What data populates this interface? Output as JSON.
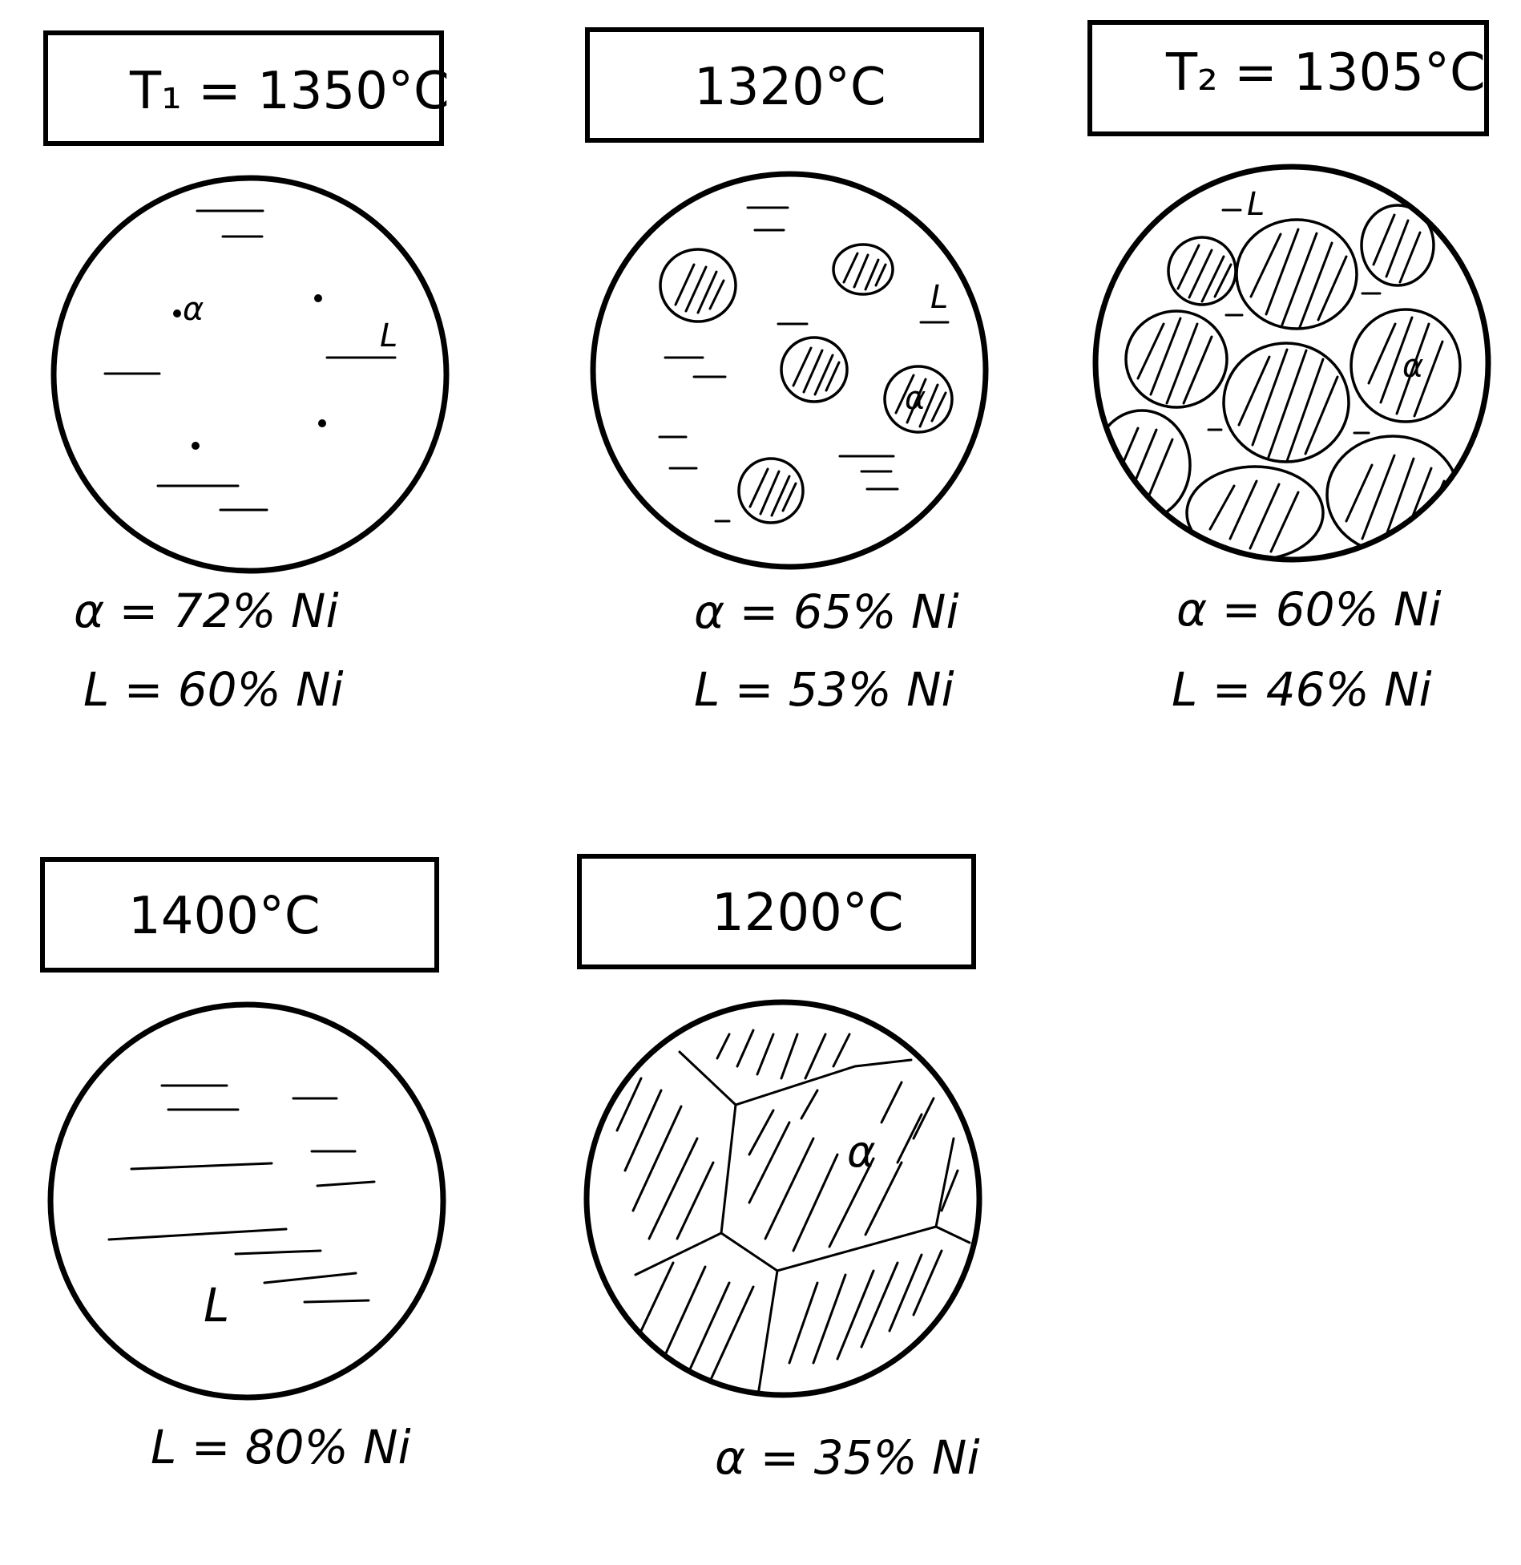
{
  "panels": [
    {
      "id": "t1",
      "title": "T₁ = 1350°C",
      "lines": [
        "α = 72% Ni",
        "L = 60% Ni"
      ],
      "labels": [
        "α",
        "L"
      ]
    },
    {
      "id": "mid",
      "title": "1320°C",
      "lines": [
        "α = 65% Ni",
        "L = 53% Ni"
      ],
      "labels": [
        "L",
        "α"
      ]
    },
    {
      "id": "t2",
      "title": "T₂ = 1305°C",
      "lines": [
        "α = 60% Ni",
        "L = 46% Ni"
      ],
      "labels": [
        "L",
        "α"
      ]
    },
    {
      "id": "liquid",
      "title": "1400°C",
      "lines": [
        "L = 80% Ni"
      ],
      "labels": [
        "L"
      ]
    },
    {
      "id": "solid",
      "title": "1200°C",
      "lines": [
        "α = 35% Ni"
      ],
      "labels": [
        "α"
      ]
    }
  ]
}
